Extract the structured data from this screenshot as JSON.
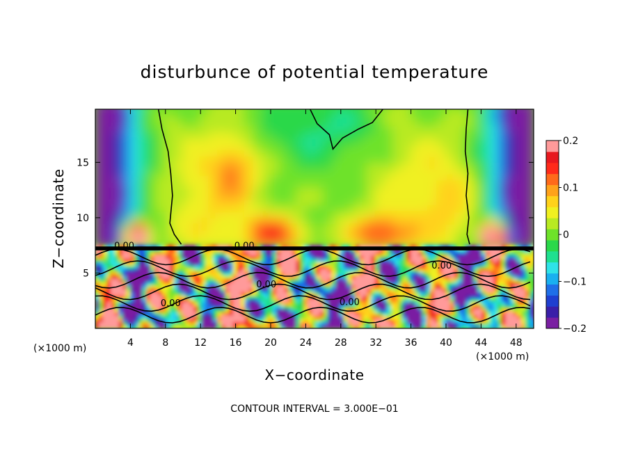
{
  "chart_data": {
    "type": "heatmap",
    "title": "disturbunce of potential temperature",
    "xlabel": "X−coordinate",
    "ylabel": "Z−coordinate",
    "x_unit": "(×1000 m)",
    "xlim": [
      0,
      50
    ],
    "ylim": [
      0,
      19.8
    ],
    "x_ticks": [
      4,
      8,
      12,
      16,
      20,
      24,
      28,
      32,
      36,
      40,
      44,
      48
    ],
    "x_tick_labels": [
      "4",
      "8",
      "12",
      "16",
      "20",
      "24",
      "28",
      "32",
      "36",
      "40",
      "44",
      "48"
    ],
    "y_ticks": [
      5,
      10,
      15
    ],
    "y_tick_labels": [
      "5",
      "10",
      "15"
    ],
    "colorbar": {
      "range": [
        -0.2,
        0.2
      ],
      "ticks": [
        0.2,
        0.1,
        0,
        -0.1,
        -0.2
      ],
      "tick_labels": [
        "0.2",
        "0.1",
        "0",
        "−0.1",
        "−0.2"
      ],
      "colors": [
        "#7a1fa2",
        "#3a1fa8",
        "#1f3fd0",
        "#1f6fe8",
        "#19b0f0",
        "#2fe3e8",
        "#1fe090",
        "#2ad84a",
        "#6ee22a",
        "#b8ea22",
        "#f0f020",
        "#ffd21a",
        "#ffa21a",
        "#ff6a1a",
        "#ff2a1a",
        "#e8181f",
        "#ff9a9a"
      ]
    },
    "contour_labels": [
      "0.00",
      "0.00",
      "0.00",
      "0.00",
      "0.00",
      "0.00"
    ],
    "footnote": "CONTOUR INTERVAL = 3.000E−01"
  }
}
